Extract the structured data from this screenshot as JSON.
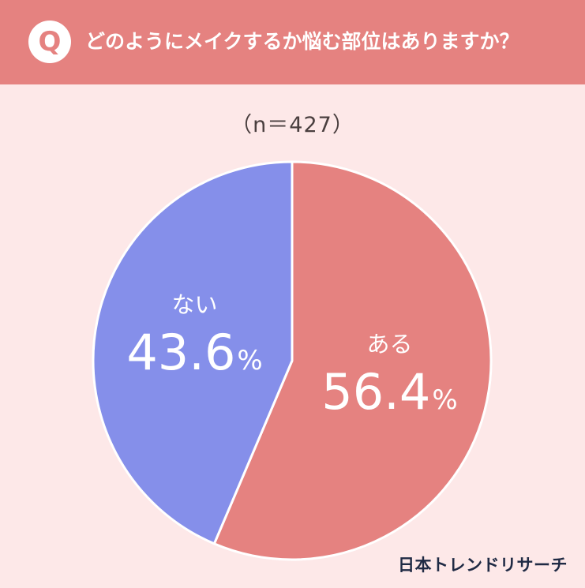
{
  "header": {
    "badge": "Q",
    "question": "どのようにメイクするか悩む部位はありますか？"
  },
  "sample_size": "（n＝427）",
  "footer": {
    "logo_text": "日本トレンドリサーチ"
  },
  "colors": {
    "header_bg": "#e58280",
    "page_bg": "#fde8e8",
    "aru": "#e58280",
    "nai": "#858fea",
    "label_text": "#ffffff"
  },
  "chart_data": {
    "type": "pie",
    "title": "どのようにメイクするか悩む部位はありますか？",
    "n": 427,
    "slices": [
      {
        "label": "ある",
        "value": 56.4,
        "display": "56.4",
        "unit": "%",
        "color": "#e58280"
      },
      {
        "label": "ない",
        "value": 43.6,
        "display": "43.6",
        "unit": "%",
        "color": "#858fea"
      }
    ],
    "start": "12 o'clock",
    "direction": "clockwise"
  }
}
